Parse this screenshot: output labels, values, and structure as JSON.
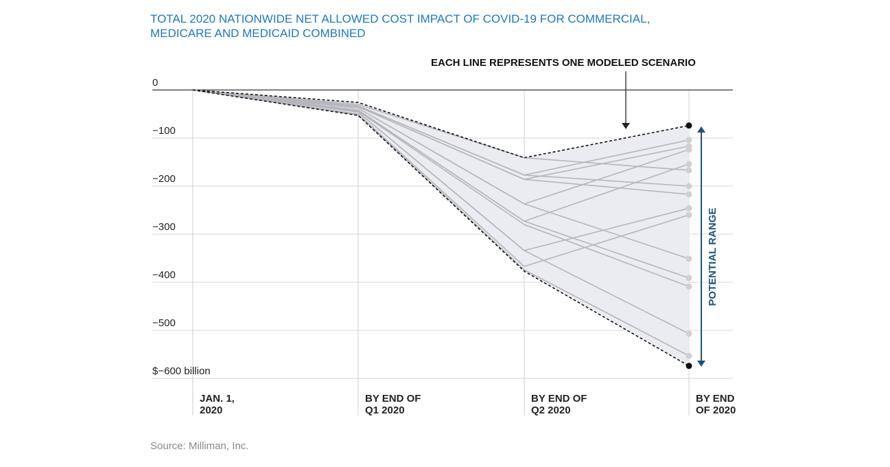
{
  "chart_data": {
    "type": "line",
    "title": "TOTAL 2020 NATIONWIDE NET ALLOWED COST IMPACT OF COVID-19 FOR COMMERCIAL, MEDICARE AND MEDICAID COMBINED",
    "title_lines": [
      "TOTAL 2020 NATIONWIDE NET ALLOWED COST IMPACT OF COVID-19 FOR COMMERCIAL,",
      "MEDICARE AND MEDICAID COMBINED"
    ],
    "categories": [
      [
        "JAN. 1,",
        "2020"
      ],
      [
        "BY END OF",
        "Q1 2020"
      ],
      [
        "BY END OF",
        "Q2 2020"
      ],
      [
        "BY END",
        "OF 2020"
      ]
    ],
    "ylim": [
      -600,
      0
    ],
    "yticks": [
      0,
      -100,
      -200,
      -300,
      -400,
      -500,
      -600
    ],
    "ytick_labels": [
      "0",
      "−100",
      "−200",
      "−300",
      "−400",
      "−500",
      "$−600 billion"
    ],
    "grid": "horizontal and vertical",
    "annotation": "EACH LINE REPRESENTS ONE MODELED SCENARIO",
    "range_label": "POTENTIAL RANGE",
    "bounds": {
      "upper": [
        0,
        -26,
        -141,
        -74
      ],
      "lower": [
        0,
        -53,
        -377,
        -574
      ]
    },
    "scenarios": [
      [
        0,
        -30,
        -141,
        -167
      ],
      [
        0,
        -33,
        -177,
        -104
      ],
      [
        0,
        -33,
        -177,
        -200
      ],
      [
        0,
        -35,
        -186,
        -117
      ],
      [
        0,
        -35,
        -186,
        -217
      ],
      [
        0,
        -38,
        -237,
        -124
      ],
      [
        0,
        -38,
        -237,
        -351
      ],
      [
        0,
        -42,
        -273,
        -154
      ],
      [
        0,
        -42,
        -273,
        -391
      ],
      [
        0,
        -44,
        -280,
        -409
      ],
      [
        0,
        -46,
        -334,
        -246
      ],
      [
        0,
        -46,
        -334,
        -507
      ],
      [
        0,
        -50,
        -367,
        -260
      ],
      [
        0,
        -52,
        -374,
        -553
      ]
    ],
    "colors": {
      "title": "#1a78c2",
      "range": "#1d527f",
      "fill": "#ebecf1",
      "scenario": "#b5b6bc",
      "bound": "#111111"
    }
  },
  "source": "Source: Milliman, Inc."
}
